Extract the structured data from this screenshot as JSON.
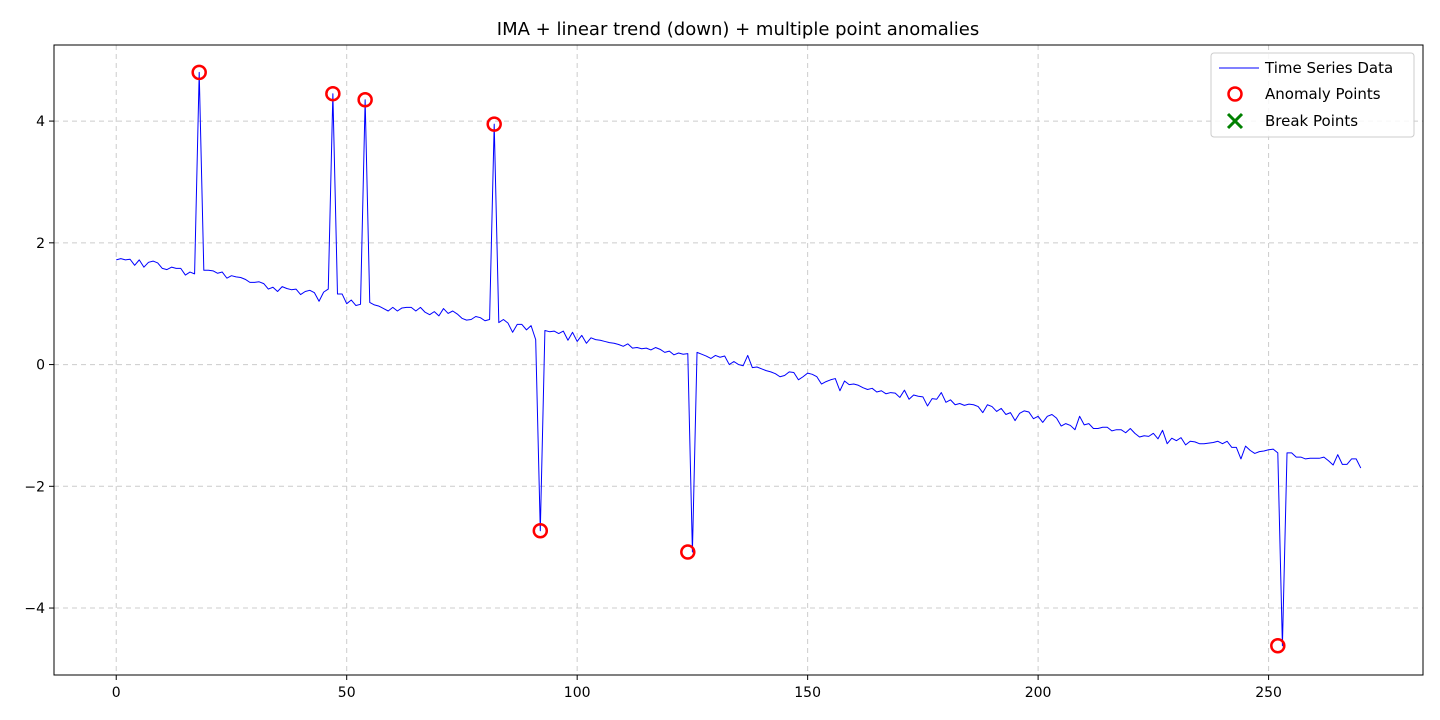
{
  "chart_data": {
    "type": "line",
    "title": "IMA + linear trend (down) + multiple point anomalies",
    "xlabel": "",
    "ylabel": "",
    "xlim": [
      -13.5,
      283.5
    ],
    "ylim": [
      -5.1,
      5.25
    ],
    "x_ticks": [
      0,
      50,
      100,
      150,
      200,
      250
    ],
    "y_ticks": [
      -4,
      -2,
      0,
      2,
      4
    ],
    "grid": true,
    "legend_position": "top-right",
    "series": [
      {
        "name": "Time Series Data",
        "color": "#0000ff",
        "values": [
          1.72,
          1.74,
          1.72,
          1.73,
          1.63,
          1.72,
          1.6,
          1.68,
          1.7,
          1.67,
          1.58,
          1.56,
          1.6,
          1.58,
          1.58,
          1.47,
          1.52,
          1.49,
          4.8,
          1.55,
          1.55,
          1.54,
          1.5,
          1.52,
          1.42,
          1.46,
          1.44,
          1.43,
          1.4,
          1.35,
          1.35,
          1.36,
          1.33,
          1.24,
          1.27,
          1.2,
          1.28,
          1.25,
          1.23,
          1.24,
          1.15,
          1.2,
          1.22,
          1.18,
          1.04,
          1.19,
          1.24,
          4.45,
          1.16,
          1.16,
          1.0,
          1.06,
          0.97,
          0.99,
          4.35,
          1.02,
          0.98,
          0.96,
          0.92,
          0.88,
          0.94,
          0.88,
          0.93,
          0.94,
          0.94,
          0.88,
          0.94,
          0.86,
          0.82,
          0.87,
          0.8,
          0.92,
          0.84,
          0.88,
          0.83,
          0.76,
          0.73,
          0.74,
          0.79,
          0.77,
          0.72,
          0.74,
          3.95,
          0.69,
          0.74,
          0.68,
          0.53,
          0.66,
          0.66,
          0.57,
          0.64,
          0.41,
          -2.73,
          0.56,
          0.54,
          0.55,
          0.51,
          0.55,
          0.4,
          0.53,
          0.38,
          0.48,
          0.35,
          0.44,
          0.41,
          0.4,
          0.38,
          0.36,
          0.35,
          0.33,
          0.3,
          0.34,
          0.27,
          0.28,
          0.26,
          0.27,
          0.24,
          0.28,
          0.25,
          0.2,
          0.22,
          0.16,
          0.19,
          0.17,
          0.18,
          -3.08,
          0.2,
          0.17,
          0.14,
          0.1,
          0.15,
          0.12,
          0.14,
          0.0,
          0.05,
          0.0,
          -0.02,
          0.15,
          -0.05,
          -0.04,
          -0.07,
          -0.1,
          -0.12,
          -0.15,
          -0.2,
          -0.18,
          -0.12,
          -0.13,
          -0.25,
          -0.2,
          -0.14,
          -0.16,
          -0.2,
          -0.32,
          -0.28,
          -0.25,
          -0.23,
          -0.43,
          -0.27,
          -0.33,
          -0.32,
          -0.34,
          -0.38,
          -0.41,
          -0.39,
          -0.45,
          -0.43,
          -0.48,
          -0.46,
          -0.47,
          -0.54,
          -0.42,
          -0.57,
          -0.5,
          -0.52,
          -0.53,
          -0.68,
          -0.56,
          -0.57,
          -0.46,
          -0.62,
          -0.58,
          -0.66,
          -0.64,
          -0.67,
          -0.65,
          -0.66,
          -0.69,
          -0.79,
          -0.66,
          -0.69,
          -0.77,
          -0.72,
          -0.82,
          -0.79,
          -0.92,
          -0.8,
          -0.76,
          -0.78,
          -0.89,
          -0.85,
          -0.95,
          -0.85,
          -0.82,
          -0.88,
          -1.01,
          -0.97,
          -1.0,
          -1.07,
          -0.85,
          -0.99,
          -0.97,
          -1.05,
          -1.05,
          -1.03,
          -1.03,
          -1.09,
          -1.07,
          -1.07,
          -1.12,
          -1.05,
          -1.13,
          -1.19,
          -1.17,
          -1.18,
          -1.13,
          -1.22,
          -1.08,
          -1.3,
          -1.21,
          -1.25,
          -1.2,
          -1.32,
          -1.26,
          -1.27,
          -1.3,
          -1.3,
          -1.29,
          -1.28,
          -1.26,
          -1.3,
          -1.26,
          -1.36,
          -1.36,
          -1.55,
          -1.34,
          -1.41,
          -1.46,
          -1.43,
          -1.42,
          -1.4,
          -1.39,
          -1.45,
          -4.62,
          -1.45,
          -1.45,
          -1.52,
          -1.52,
          -1.55,
          -1.54,
          -1.54,
          -1.54,
          -1.52,
          -1.58,
          -1.65,
          -1.48,
          -1.64,
          -1.64,
          -1.55,
          -1.55,
          -1.7
        ]
      },
      {
        "name": "Anomaly Points",
        "color": "#ff0000",
        "x": [
          18,
          47,
          54,
          82,
          92,
          124,
          252
        ],
        "y": [
          4.8,
          4.45,
          4.35,
          3.95,
          -2.73,
          -3.08,
          -4.62
        ]
      },
      {
        "name": "Break Points",
        "color": "#008000",
        "x": [],
        "y": []
      }
    ]
  }
}
